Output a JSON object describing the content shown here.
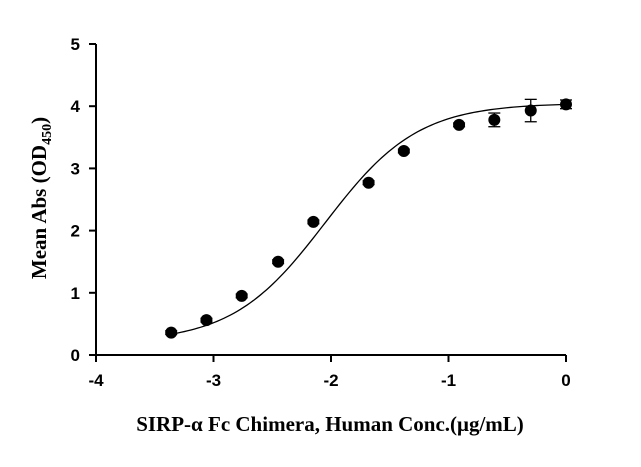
{
  "chart_data": {
    "type": "scatter",
    "xlabel": "SIRP-α Fc Chimera, Human Conc.(μg/mL)",
    "ylabel_main": "Mean Abs (OD",
    "ylabel_sub": "450",
    "ylabel_close": ")",
    "xlim": [
      -4,
      0
    ],
    "ylim": [
      0,
      5
    ],
    "xticks": [
      -4,
      -3,
      -2,
      -1,
      0
    ],
    "yticks": [
      0,
      1,
      2,
      3,
      4,
      5
    ],
    "grid": false,
    "series": [
      {
        "points": [
          {
            "x": -3.36,
            "y": 0.36,
            "err": 0.03
          },
          {
            "x": -3.06,
            "y": 0.56,
            "err": 0.03
          },
          {
            "x": -2.76,
            "y": 0.95,
            "err": 0.03
          },
          {
            "x": -2.45,
            "y": 1.5,
            "err": 0.03
          },
          {
            "x": -2.15,
            "y": 2.14,
            "err": 0.03
          },
          {
            "x": -1.68,
            "y": 2.77,
            "err": 0.03
          },
          {
            "x": -1.38,
            "y": 3.28,
            "err": 0.03
          },
          {
            "x": -0.91,
            "y": 3.7,
            "err": 0.03
          },
          {
            "x": -0.61,
            "y": 3.78,
            "err": 0.11
          },
          {
            "x": -0.3,
            "y": 3.93,
            "err": 0.18
          },
          {
            "x": 0.0,
            "y": 4.03,
            "err": 0.07
          }
        ],
        "fit": {
          "model": "4PL",
          "bottom": 0.2,
          "top": 4.05,
          "logEC50": -2.05,
          "hill": 1.1,
          "x_range": [
            -3.36,
            0.0
          ]
        }
      }
    ]
  }
}
